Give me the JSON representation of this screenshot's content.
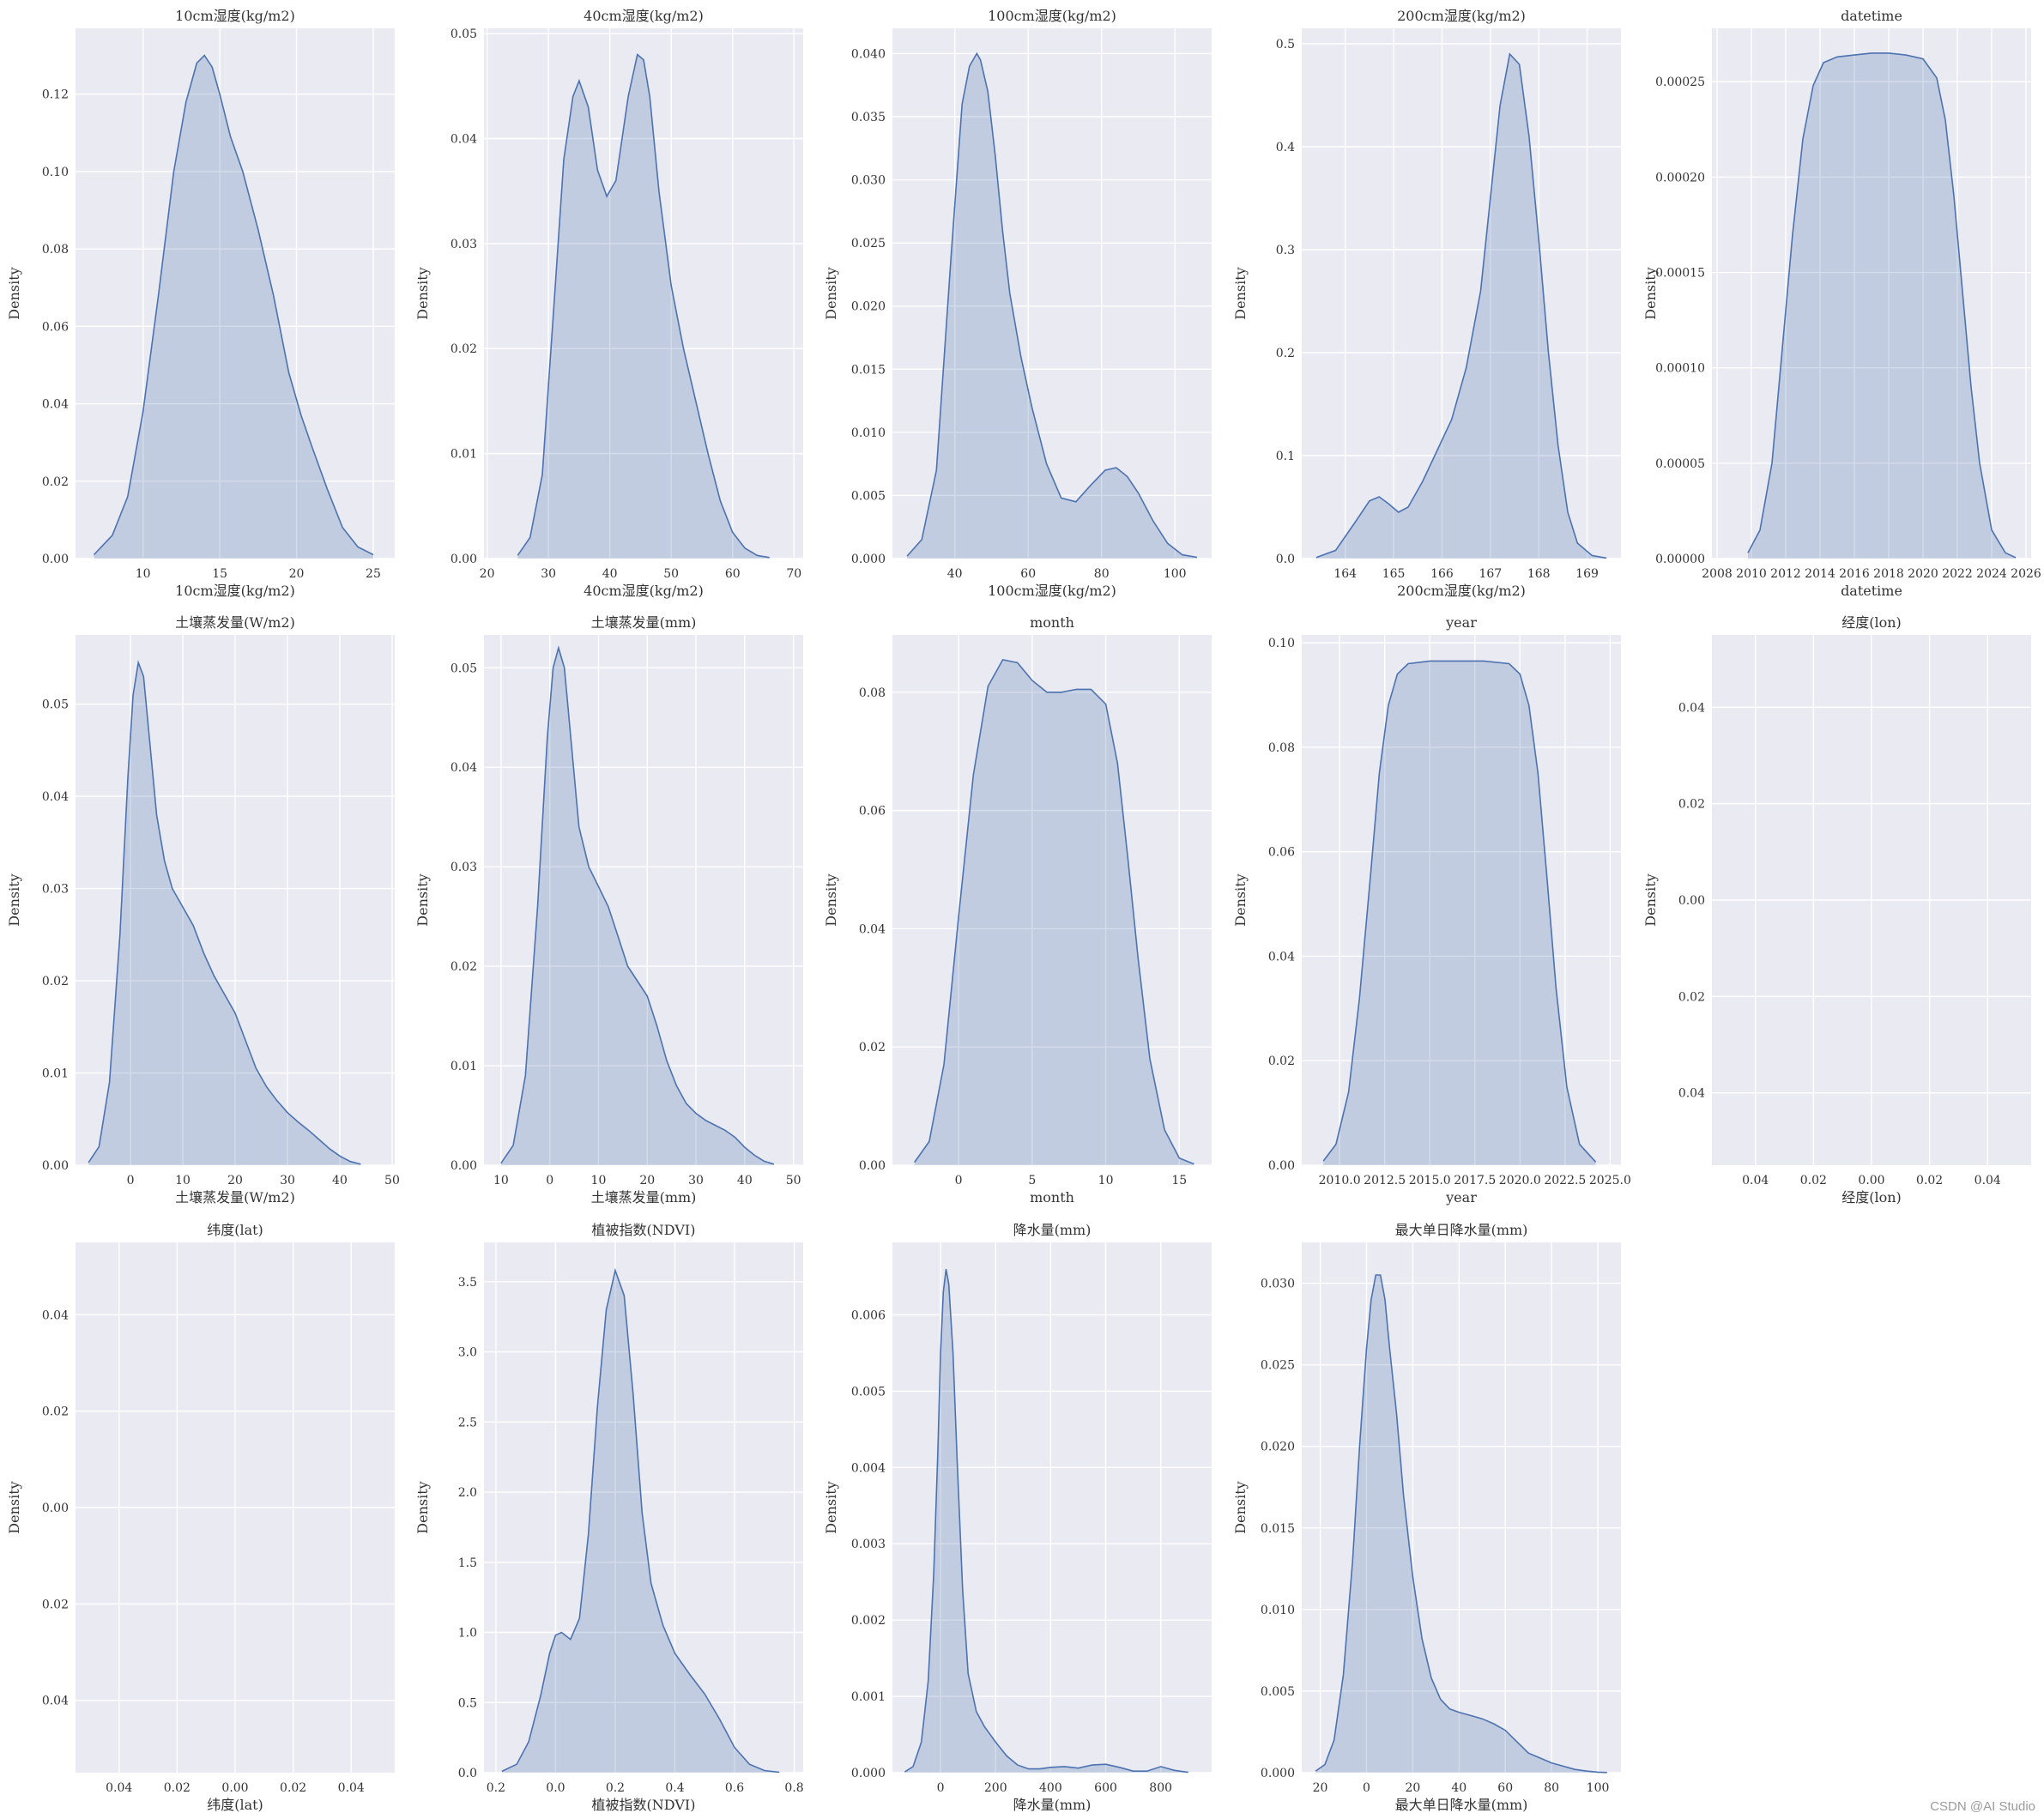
{
  "watermark": "CSDN @AI Studio",
  "style": {
    "panel_bg": "#eaeaf2",
    "grid": "#ffffff",
    "line": "#4c72b0",
    "fill": "#4c72b0",
    "fill_opacity": 0.25,
    "text": "#333333"
  },
  "chart_data": [
    {
      "type": "area",
      "title": "10cm湿度(kg/m2)",
      "xlabel": "10cm湿度(kg/m2)",
      "ylabel": "Density",
      "xlim": [
        5.6,
        26.4
      ],
      "ylim": [
        0,
        0.137
      ],
      "xticks": [
        10,
        15,
        20,
        25
      ],
      "xtick_labels": [
        "10",
        "15",
        "20",
        "25"
      ],
      "yticks": [
        0,
        0.02,
        0.04,
        0.06,
        0.08,
        0.1,
        0.12
      ],
      "ytick_labels": [
        "0.00",
        "0.02",
        "0.04",
        "0.06",
        "0.08",
        "0.10",
        "0.12"
      ],
      "x": [
        6.8,
        8,
        9,
        10,
        11,
        12,
        12.8,
        13.5,
        14,
        14.5,
        15,
        15.7,
        16.5,
        17.5,
        18.5,
        19.5,
        20.3,
        21,
        22,
        23,
        24,
        25
      ],
      "y": [
        0.001,
        0.006,
        0.016,
        0.038,
        0.068,
        0.1,
        0.118,
        0.128,
        0.13,
        0.127,
        0.12,
        0.109,
        0.1,
        0.085,
        0.068,
        0.048,
        0.037,
        0.029,
        0.018,
        0.008,
        0.003,
        0.001
      ]
    },
    {
      "type": "area",
      "title": "40cm湿度(kg/m2)",
      "xlabel": "40cm湿度(kg/m2)",
      "ylabel": "Density",
      "xlim": [
        19.5,
        71.5
      ],
      "ylim": [
        0,
        0.0505
      ],
      "xticks": [
        20,
        30,
        40,
        50,
        60,
        70
      ],
      "xtick_labels": [
        "20",
        "30",
        "40",
        "50",
        "60",
        "70"
      ],
      "yticks": [
        0,
        0.01,
        0.02,
        0.03,
        0.04,
        0.05
      ],
      "ytick_labels": [
        "0.00",
        "0.01",
        "0.02",
        "0.03",
        "0.04",
        "0.05"
      ],
      "x": [
        25,
        27,
        29,
        31,
        32.5,
        34,
        35,
        36.5,
        38,
        39.5,
        41,
        43,
        44.5,
        45.5,
        46.5,
        48,
        50,
        52,
        54,
        56,
        58,
        60,
        62,
        64,
        66
      ],
      "y": [
        0.0003,
        0.002,
        0.008,
        0.025,
        0.038,
        0.044,
        0.0455,
        0.043,
        0.037,
        0.0345,
        0.036,
        0.044,
        0.048,
        0.0475,
        0.044,
        0.035,
        0.026,
        0.02,
        0.015,
        0.01,
        0.0055,
        0.0025,
        0.001,
        0.0003,
        0.0001
      ]
    },
    {
      "type": "area",
      "title": "100cm湿度(kg/m2)",
      "xlabel": "100cm湿度(kg/m2)",
      "ylabel": "Density",
      "xlim": [
        23,
        110
      ],
      "ylim": [
        0,
        0.042
      ],
      "xticks": [
        40,
        60,
        80,
        100
      ],
      "xtick_labels": [
        "40",
        "60",
        "80",
        "100"
      ],
      "yticks": [
        0,
        0.005,
        0.01,
        0.015,
        0.02,
        0.025,
        0.03,
        0.035,
        0.04
      ],
      "ytick_labels": [
        "0.000",
        "0.005",
        "0.010",
        "0.015",
        "0.020",
        "0.025",
        "0.030",
        "0.035",
        "0.040"
      ],
      "x": [
        27,
        31,
        35,
        39,
        42,
        44,
        46,
        47,
        49,
        51,
        53,
        55,
        58,
        61,
        65,
        69,
        73,
        77,
        81,
        84,
        87,
        90,
        94,
        98,
        102,
        106
      ],
      "y": [
        0.0002,
        0.0015,
        0.007,
        0.024,
        0.036,
        0.039,
        0.04,
        0.0395,
        0.037,
        0.032,
        0.026,
        0.021,
        0.016,
        0.012,
        0.0075,
        0.0048,
        0.0045,
        0.0058,
        0.007,
        0.0072,
        0.0065,
        0.0052,
        0.003,
        0.0012,
        0.0003,
        0.0001
      ]
    },
    {
      "type": "area",
      "title": "200cm湿度(kg/m2)",
      "xlabel": "200cm湿度(kg/m2)",
      "ylabel": "Density",
      "xlim": [
        163.1,
        169.7
      ],
      "ylim": [
        0,
        0.515
      ],
      "xticks": [
        164,
        165,
        166,
        167,
        168,
        169
      ],
      "xtick_labels": [
        "164",
        "165",
        "166",
        "167",
        "168",
        "169"
      ],
      "yticks": [
        0,
        0.1,
        0.2,
        0.3,
        0.4,
        0.5
      ],
      "ytick_labels": [
        "0.0",
        "0.1",
        "0.2",
        "0.3",
        "0.4",
        "0.5"
      ],
      "x": [
        163.4,
        163.8,
        164.2,
        164.5,
        164.7,
        164.9,
        165.1,
        165.3,
        165.6,
        165.9,
        166.2,
        166.5,
        166.8,
        167,
        167.2,
        167.4,
        167.6,
        167.8,
        168,
        168.2,
        168.4,
        168.6,
        168.8,
        169.1,
        169.4
      ],
      "y": [
        0.001,
        0.008,
        0.035,
        0.056,
        0.06,
        0.053,
        0.045,
        0.05,
        0.075,
        0.105,
        0.135,
        0.185,
        0.26,
        0.35,
        0.44,
        0.49,
        0.48,
        0.41,
        0.31,
        0.2,
        0.11,
        0.045,
        0.015,
        0.003,
        0.0005
      ]
    },
    {
      "type": "area",
      "title": "datetime",
      "xlabel": "datetime",
      "ylabel": "Density",
      "xlim": [
        2007.7,
        2026.3
      ],
      "ylim": [
        0,
        0.000278
      ],
      "xticks": [
        2008,
        2010,
        2012,
        2014,
        2016,
        2018,
        2020,
        2022,
        2024,
        2026
      ],
      "xtick_labels": [
        "2008",
        "2010",
        "2012",
        "2014",
        "2016",
        "2018",
        "2020",
        "2022",
        "2024",
        "2026"
      ],
      "yticks": [
        0,
        5e-05,
        0.0001,
        0.00015,
        0.0002,
        0.00025
      ],
      "ytick_labels": [
        "0.00000",
        "0.00005",
        "0.00010",
        "0.00015",
        "0.00020",
        "0.00025"
      ],
      "x": [
        2009.8,
        2010.5,
        2011.2,
        2011.8,
        2012.4,
        2013,
        2013.6,
        2014.2,
        2015,
        2016,
        2017,
        2018,
        2019,
        2020,
        2020.8,
        2021.3,
        2021.8,
        2022.3,
        2022.8,
        2023.3,
        2024,
        2024.8,
        2025.4
      ],
      "y": [
        3e-06,
        1.5e-05,
        5e-05,
        0.00011,
        0.00017,
        0.00022,
        0.000248,
        0.00026,
        0.000263,
        0.000264,
        0.000265,
        0.000265,
        0.000264,
        0.000262,
        0.000252,
        0.00023,
        0.00019,
        0.00014,
        9e-05,
        5e-05,
        1.5e-05,
        3e-06,
        5e-07
      ]
    },
    {
      "type": "area",
      "title": "土壤蒸发量(W/m2)",
      "xlabel": "土壤蒸发量(W/m2)",
      "ylabel": "Density",
      "xlim": [
        -10.5,
        50.5
      ],
      "ylim": [
        0,
        0.0575
      ],
      "xticks": [
        0,
        10,
        20,
        30,
        40,
        50
      ],
      "xtick_labels": [
        "0",
        "10",
        "20",
        "30",
        "40",
        "50"
      ],
      "yticks": [
        0,
        0.01,
        0.02,
        0.03,
        0.04,
        0.05
      ],
      "ytick_labels": [
        "0.00",
        "0.01",
        "0.02",
        "0.03",
        "0.04",
        "0.05"
      ],
      "x": [
        -8,
        -6,
        -4,
        -2,
        -0.5,
        0.5,
        1.5,
        2.5,
        3.5,
        5,
        6.5,
        8,
        10,
        12,
        14,
        16,
        18,
        20,
        22,
        24,
        26,
        28,
        30,
        32,
        34,
        36,
        38,
        40,
        42,
        44
      ],
      "y": [
        0.0003,
        0.002,
        0.009,
        0.025,
        0.042,
        0.051,
        0.0545,
        0.053,
        0.047,
        0.038,
        0.033,
        0.03,
        0.028,
        0.026,
        0.023,
        0.0205,
        0.0185,
        0.0165,
        0.0135,
        0.0105,
        0.0085,
        0.007,
        0.0057,
        0.0047,
        0.0038,
        0.0028,
        0.0018,
        0.001,
        0.0004,
        0.0001
      ]
    },
    {
      "type": "area",
      "title": "土壤蒸发量(mm)",
      "xlabel": "土壤蒸发量(mm)",
      "ylabel": "Density",
      "xlim": [
        -13.5,
        52
      ],
      "ylim": [
        0,
        0.0533
      ],
      "xticks": [
        -10,
        0,
        10,
        20,
        30,
        40,
        50
      ],
      "xtick_labels": [
        "10",
        "0",
        "10",
        "20",
        "30",
        "40",
        "50"
      ],
      "yticks": [
        0,
        0.01,
        0.02,
        0.03,
        0.04,
        0.05
      ],
      "ytick_labels": [
        "0.00",
        "0.01",
        "0.02",
        "0.03",
        "0.04",
        "0.05"
      ],
      "x": [
        -10,
        -7.5,
        -5,
        -2.5,
        -0.5,
        0.7,
        1.8,
        3,
        4.5,
        6,
        8,
        10,
        12,
        14,
        16,
        18,
        20,
        22,
        24,
        26,
        28,
        30,
        32,
        34,
        36,
        38,
        40,
        42,
        44,
        46
      ],
      "y": [
        0.0002,
        0.002,
        0.009,
        0.026,
        0.043,
        0.05,
        0.052,
        0.05,
        0.042,
        0.034,
        0.03,
        0.028,
        0.026,
        0.023,
        0.02,
        0.0185,
        0.017,
        0.014,
        0.0105,
        0.008,
        0.0062,
        0.0052,
        0.0045,
        0.004,
        0.0035,
        0.0028,
        0.0018,
        0.001,
        0.0004,
        0.0001
      ]
    },
    {
      "type": "area",
      "title": "month",
      "xlabel": "month",
      "ylabel": "Density",
      "xlim": [
        -4.5,
        17.2
      ],
      "ylim": [
        0,
        0.0897
      ],
      "xticks": [
        0,
        5,
        10,
        15
      ],
      "xtick_labels": [
        "0",
        "5",
        "10",
        "15"
      ],
      "yticks": [
        0,
        0.02,
        0.04,
        0.06,
        0.08
      ],
      "ytick_labels": [
        "0.00",
        "0.02",
        "0.04",
        "0.06",
        "0.08"
      ],
      "x": [
        -3,
        -2,
        -1,
        0,
        1,
        2,
        3,
        4,
        5,
        6,
        7,
        8,
        9,
        10,
        10.8,
        11.5,
        12.2,
        13,
        14,
        15,
        16
      ],
      "y": [
        0.0005,
        0.004,
        0.017,
        0.042,
        0.066,
        0.081,
        0.0855,
        0.085,
        0.082,
        0.08,
        0.08,
        0.0805,
        0.0805,
        0.078,
        0.068,
        0.052,
        0.035,
        0.018,
        0.006,
        0.0012,
        0.0002
      ]
    },
    {
      "type": "area",
      "title": "year",
      "xlabel": "year",
      "ylabel": "Density",
      "xlim": [
        2007.9,
        2025.6
      ],
      "ylim": [
        0,
        0.1015
      ],
      "xticks": [
        2010,
        2012.5,
        2015,
        2017.5,
        2020,
        2022.5,
        2025
      ],
      "xtick_labels": [
        "2010.0",
        "2012.5",
        "2015.0",
        "2017.5",
        "2020.0",
        "2022.5",
        "2025.0"
      ],
      "yticks": [
        0,
        0.02,
        0.04,
        0.06,
        0.08,
        0.1
      ],
      "ytick_labels": [
        "0.00",
        "0.02",
        "0.04",
        "0.06",
        "0.08",
        "0.10"
      ],
      "x": [
        2009.1,
        2009.8,
        2010.5,
        2011.1,
        2011.7,
        2012.2,
        2012.7,
        2013.2,
        2013.8,
        2015,
        2016.5,
        2018,
        2019.4,
        2020,
        2020.5,
        2021,
        2021.5,
        2022,
        2022.6,
        2023.3,
        2024.2
      ],
      "y": [
        0.0008,
        0.004,
        0.014,
        0.032,
        0.055,
        0.075,
        0.088,
        0.094,
        0.096,
        0.0965,
        0.0965,
        0.0965,
        0.096,
        0.094,
        0.088,
        0.075,
        0.055,
        0.034,
        0.015,
        0.004,
        0.0006
      ]
    },
    {
      "type": "area",
      "title": "经度(lon)",
      "xlabel": "经度(lon)",
      "ylabel": "Density",
      "xlim": [
        -0.055,
        0.055
      ],
      "ylim": [
        -0.055,
        0.055
      ],
      "xticks": [
        -0.04,
        -0.02,
        0,
        0.02,
        0.04
      ],
      "xtick_labels": [
        "0.04",
        "0.02",
        "0.00",
        "0.02",
        "0.04"
      ],
      "yticks": [
        -0.04,
        -0.02,
        0,
        0.02,
        0.04
      ],
      "ytick_labels": [
        "0.04",
        "0.02",
        "0.00",
        "0.02",
        "0.04"
      ],
      "x": [],
      "y": []
    },
    {
      "type": "area",
      "title": "纬度(lat)",
      "xlabel": "纬度(lat)",
      "ylabel": "Density",
      "xlim": [
        -0.055,
        0.055
      ],
      "ylim": [
        -0.055,
        0.055
      ],
      "xticks": [
        -0.04,
        -0.02,
        0,
        0.02,
        0.04
      ],
      "xtick_labels": [
        "0.04",
        "0.02",
        "0.00",
        "0.02",
        "0.04"
      ],
      "yticks": [
        -0.04,
        -0.02,
        0,
        0.02,
        0.04
      ],
      "ytick_labels": [
        "0.04",
        "0.02",
        "0.00",
        "0.02",
        "0.04"
      ],
      "x": [],
      "y": []
    },
    {
      "type": "area",
      "title": "植被指数(NDVI)",
      "xlabel": "植被指数(NDVI)",
      "ylabel": "Density",
      "xlim": [
        -0.24,
        0.83
      ],
      "ylim": [
        0,
        3.78
      ],
      "xticks": [
        -0.2,
        0,
        0.2,
        0.4,
        0.6,
        0.8
      ],
      "xtick_labels": [
        "0.2",
        "0.0",
        "0.2",
        "0.4",
        "0.6",
        "0.8"
      ],
      "yticks": [
        0,
        0.5,
        1,
        1.5,
        2,
        2.5,
        3,
        3.5
      ],
      "ytick_labels": [
        "0.0",
        "0.5",
        "1.0",
        "1.5",
        "2.0",
        "2.5",
        "3.0",
        "3.5"
      ],
      "x": [
        -0.18,
        -0.13,
        -0.09,
        -0.05,
        -0.02,
        0,
        0.02,
        0.05,
        0.08,
        0.11,
        0.14,
        0.17,
        0.2,
        0.23,
        0.26,
        0.29,
        0.32,
        0.36,
        0.4,
        0.45,
        0.5,
        0.55,
        0.6,
        0.65,
        0.7,
        0.75
      ],
      "y": [
        0.01,
        0.06,
        0.22,
        0.55,
        0.85,
        0.98,
        1.0,
        0.95,
        1.1,
        1.7,
        2.6,
        3.3,
        3.58,
        3.4,
        2.7,
        1.85,
        1.35,
        1.05,
        0.85,
        0.7,
        0.56,
        0.38,
        0.18,
        0.06,
        0.015,
        0.003
      ]
    },
    {
      "type": "area",
      "title": "降水量(mm)",
      "xlabel": "降水量(mm)",
      "ylabel": "Density",
      "xlim": [
        -175,
        985
      ],
      "ylim": [
        0,
        0.00695
      ],
      "xticks": [
        0,
        200,
        400,
        600,
        800
      ],
      "xtick_labels": [
        "0",
        "200",
        "400",
        "600",
        "800"
      ],
      "yticks": [
        0,
        0.001,
        0.002,
        0.003,
        0.004,
        0.005,
        0.006
      ],
      "ytick_labels": [
        "0.000",
        "0.001",
        "0.002",
        "0.003",
        "0.004",
        "0.005",
        "0.006"
      ],
      "x": [
        -130,
        -100,
        -70,
        -45,
        -25,
        -10,
        0,
        10,
        20,
        30,
        45,
        60,
        80,
        100,
        130,
        160,
        200,
        240,
        280,
        320,
        360,
        400,
        450,
        500,
        550,
        600,
        650,
        700,
        750,
        800,
        850,
        900
      ],
      "y": [
        1e-05,
        8e-05,
        0.0004,
        0.0012,
        0.0026,
        0.0042,
        0.0055,
        0.0063,
        0.0066,
        0.0064,
        0.0055,
        0.0041,
        0.0024,
        0.0013,
        0.0008,
        0.0006,
        0.0004,
        0.00022,
        0.0001,
        5e-05,
        5e-05,
        7e-05,
        8e-05,
        6e-05,
        0.0001,
        0.00011,
        7e-05,
        2e-05,
        2e-05,
        8e-05,
        3e-05,
        5e-06
      ]
    },
    {
      "type": "area",
      "title": "最大单日降水量(mm)",
      "xlabel": "最大单日降水量(mm)",
      "ylabel": "Density",
      "xlim": [
        -28,
        110
      ],
      "ylim": [
        0,
        0.0325
      ],
      "xticks": [
        -20,
        0,
        20,
        40,
        60,
        80,
        100
      ],
      "xtick_labels": [
        "20",
        "0",
        "20",
        "40",
        "60",
        "80",
        "100"
      ],
      "yticks": [
        0,
        0.005,
        0.01,
        0.015,
        0.02,
        0.025,
        0.03
      ],
      "ytick_labels": [
        "0.000",
        "0.005",
        "0.010",
        "0.015",
        "0.020",
        "0.025",
        "0.030"
      ],
      "x": [
        -22,
        -18,
        -14,
        -10,
        -6,
        -3,
        0,
        2,
        4,
        6,
        8,
        10,
        13,
        16,
        20,
        24,
        28,
        32,
        36,
        40,
        45,
        50,
        55,
        60,
        65,
        70,
        75,
        80,
        85,
        90,
        95,
        100,
        104
      ],
      "y": [
        0.0001,
        0.0005,
        0.002,
        0.006,
        0.013,
        0.02,
        0.026,
        0.029,
        0.0305,
        0.0305,
        0.029,
        0.026,
        0.022,
        0.017,
        0.012,
        0.0082,
        0.0058,
        0.0045,
        0.0039,
        0.0037,
        0.0035,
        0.0033,
        0.003,
        0.0026,
        0.0019,
        0.0012,
        0.0009,
        0.0006,
        0.0004,
        0.0002,
        0.0001,
        3e-05,
        1e-05
      ]
    }
  ]
}
